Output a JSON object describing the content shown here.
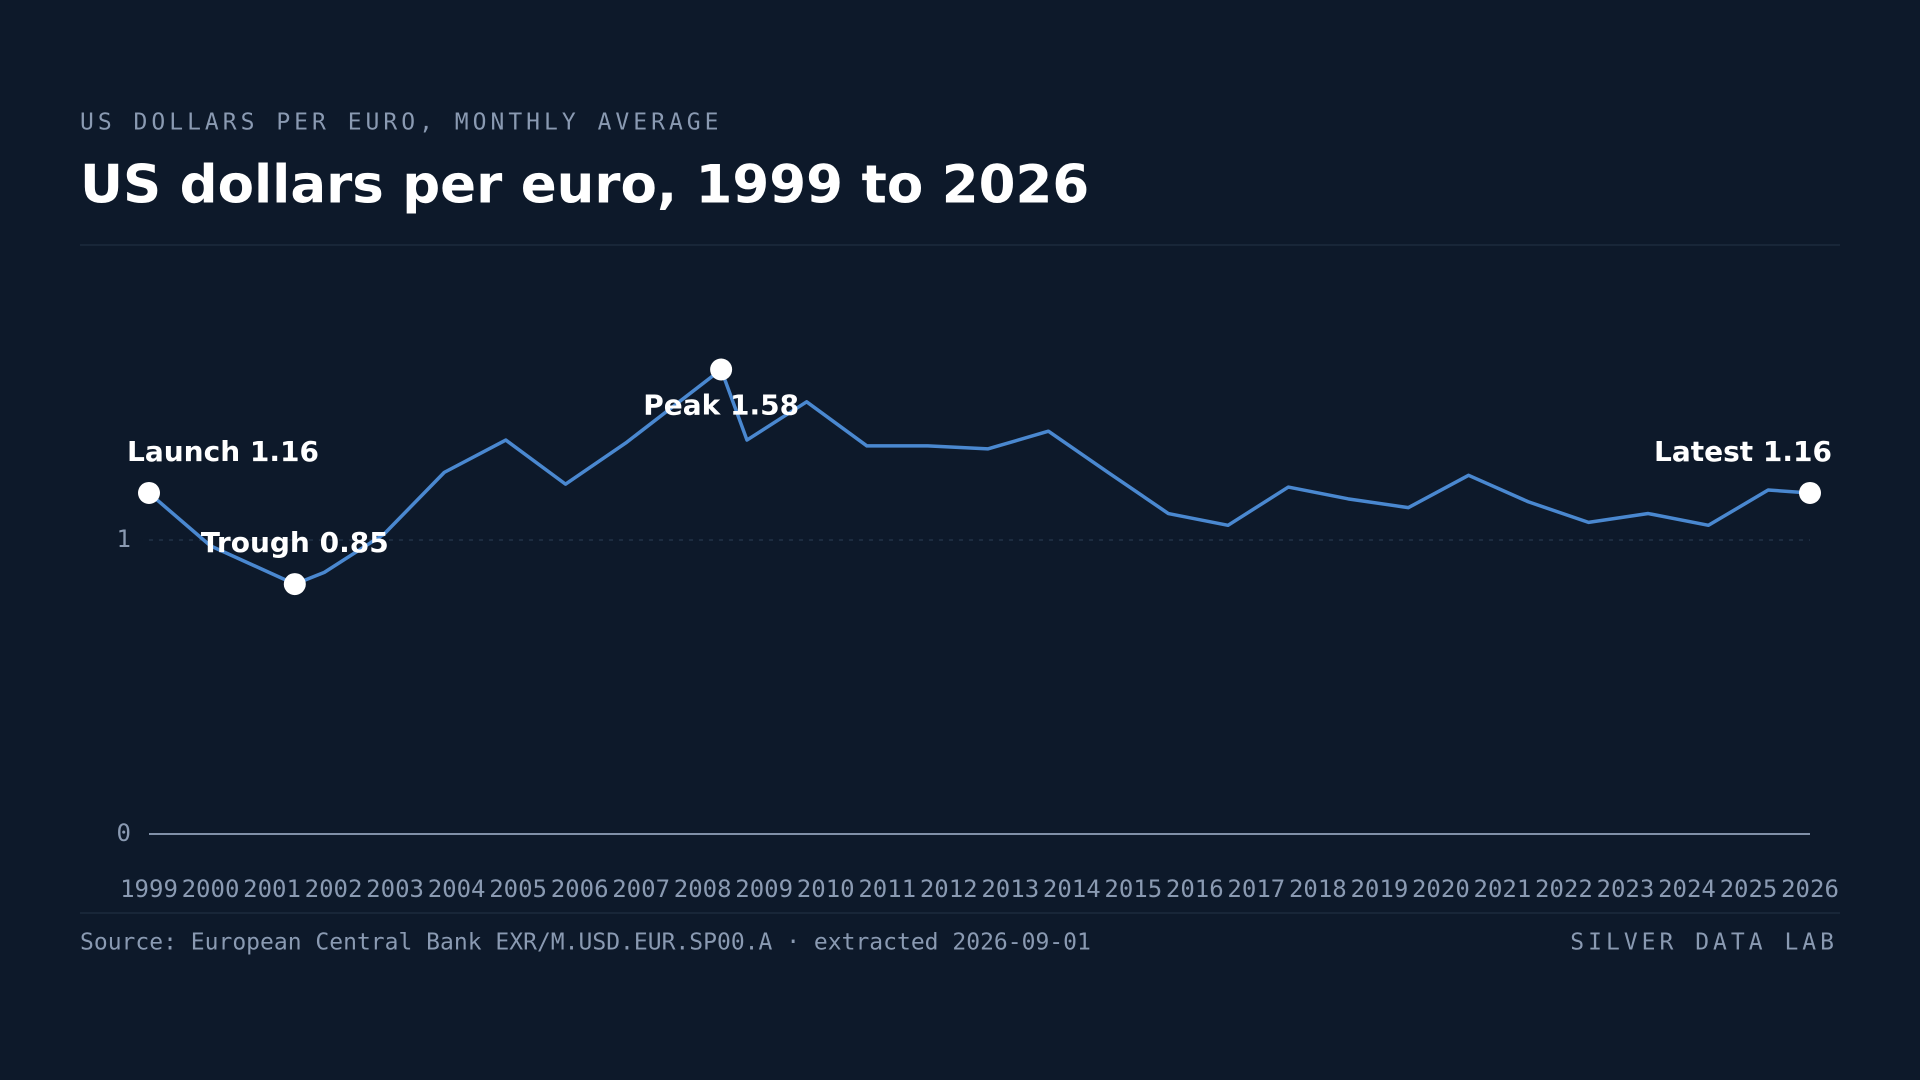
{
  "chart_data": {
    "type": "line",
    "eyebrow": "US DOLLARS PER EURO, MONTHLY AVERAGE",
    "title": "US dollars per euro, 1999 to 2026",
    "source": "Source: European Central Bank EXR/M.USD.EUR.SP00.A · extracted 2026-09-01",
    "brand": "SILVER DATA LAB",
    "x": [
      1999,
      2000,
      2001.37,
      2001.85,
      2002.82,
      2003.8,
      2004.8,
      2005.77,
      2006.75,
      2008.3,
      2008.72,
      2009.69,
      2010.67,
      2011.66,
      2012.64,
      2013.62,
      2014.59,
      2015.57,
      2016.54,
      2017.52,
      2018.49,
      2019.47,
      2020.45,
      2021.42,
      2022.4,
      2023.37,
      2024.35,
      2025.32,
      2026
    ],
    "series": [
      {
        "color": "#4a88d0",
        "values": [
          1.16,
          0.98,
          0.85,
          0.89,
          1.02,
          1.23,
          1.34,
          1.19,
          1.33,
          1.58,
          1.34,
          1.47,
          1.32,
          1.32,
          1.31,
          1.37,
          1.23,
          1.09,
          1.05,
          1.18,
          1.14,
          1.11,
          1.22,
          1.13,
          1.06,
          1.09,
          1.05,
          1.17,
          1.16
        ]
      }
    ],
    "xlim": [
      1999,
      2026
    ],
    "xticks": [
      1999,
      2000,
      2001,
      2002,
      2003,
      2004,
      2005,
      2006,
      2007,
      2008,
      2009,
      2010,
      2011,
      2012,
      2013,
      2014,
      2015,
      2016,
      2017,
      2018,
      2019,
      2020,
      2021,
      2022,
      2023,
      2024,
      2025,
      2026
    ],
    "ylim": [
      0,
      1.9
    ],
    "yticks": [
      0,
      1
    ],
    "annotations": [
      {
        "x": 1999,
        "y": 1.16,
        "label": "Launch 1.16"
      },
      {
        "x": 2001.37,
        "y": 0.85,
        "label": "Trough 0.85"
      },
      {
        "x": 2008.3,
        "y": 1.58,
        "label": "Peak 1.58"
      },
      {
        "x": 2026,
        "y": 1.16,
        "label": "Latest 1.16"
      }
    ]
  }
}
